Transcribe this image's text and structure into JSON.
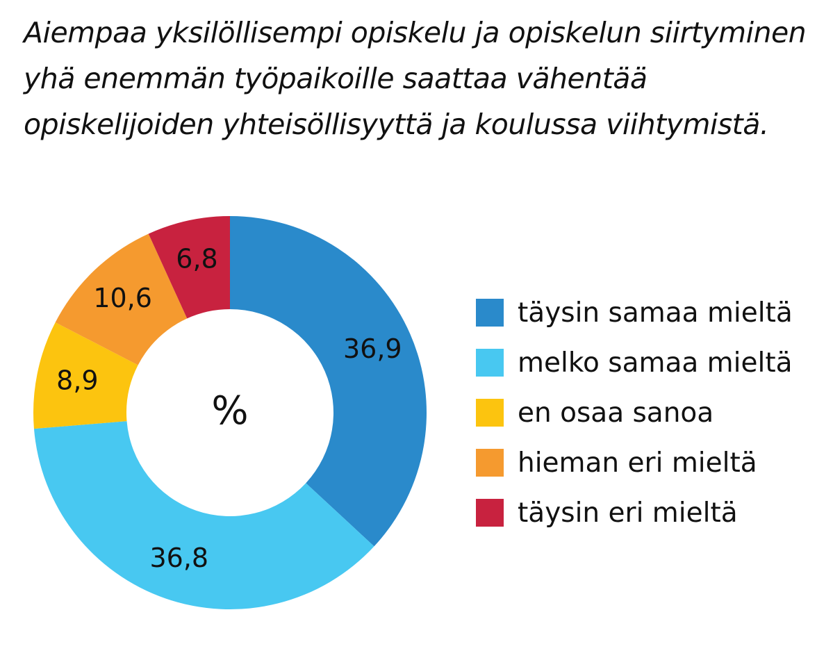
{
  "chart_data": {
    "type": "pie",
    "title": "Aiempaa yksilöllisempi opiskelu ja opiskelun siirtyminen yhä enemmän työpaikoille saattaa vähentää opiskelijoiden yhteisöllisyyttä ja koulussa viihtymistä.",
    "center_label": "%",
    "legend_position": "right",
    "slices": [
      {
        "label": "täysin samaa mieltä",
        "value": 36.9,
        "value_text": "36,9",
        "color": "#2A8ACB"
      },
      {
        "label": "melko samaa mieltä",
        "value": 36.8,
        "value_text": "36,8",
        "color": "#48C8F1"
      },
      {
        "label": "en osaa sanoa",
        "value": 8.9,
        "value_text": "8,9",
        "color": "#FCC40F"
      },
      {
        "label": "hieman eri mieltä",
        "value": 10.6,
        "value_text": "10,6",
        "color": "#F59A2F"
      },
      {
        "label": "täysin eri mieltä",
        "value": 6.8,
        "value_text": "6,8",
        "color": "#C8223F"
      }
    ]
  }
}
